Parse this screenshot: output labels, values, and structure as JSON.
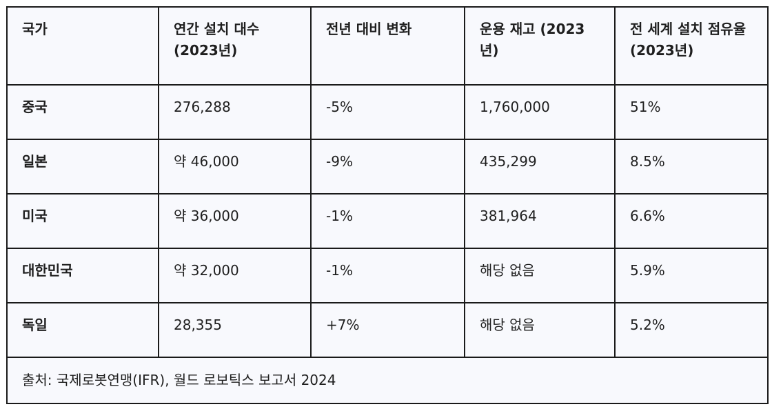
{
  "table": {
    "headers": [
      "국가",
      "연간 설치 대수 (2023년)",
      "전년 대비 변화",
      "운용 재고 (2023년)",
      "전 세계 설치 점유율 (2023년)"
    ],
    "rows": [
      {
        "country": "중국",
        "annual_installations": "276,288",
        "yoy_change": "-5%",
        "operational_stock": "1,760,000",
        "global_share": "51%"
      },
      {
        "country": "일본",
        "annual_installations": "약 46,000",
        "yoy_change": "-9%",
        "operational_stock": "435,299",
        "global_share": "8.5%"
      },
      {
        "country": "미국",
        "annual_installations": "약 36,000",
        "yoy_change": "-1%",
        "operational_stock": "381,964",
        "global_share": "6.6%"
      },
      {
        "country": "대한민국",
        "annual_installations": "약 32,000",
        "yoy_change": "-1%",
        "operational_stock": "해당 없음",
        "global_share": "5.9%"
      },
      {
        "country": "독일",
        "annual_installations": "28,355",
        "yoy_change": "+7%",
        "operational_stock": "해당 없음",
        "global_share": "5.2%"
      }
    ],
    "source": "출처: 국제로봇연맹(IFR), 월드 로보틱스 보고서 2024"
  }
}
